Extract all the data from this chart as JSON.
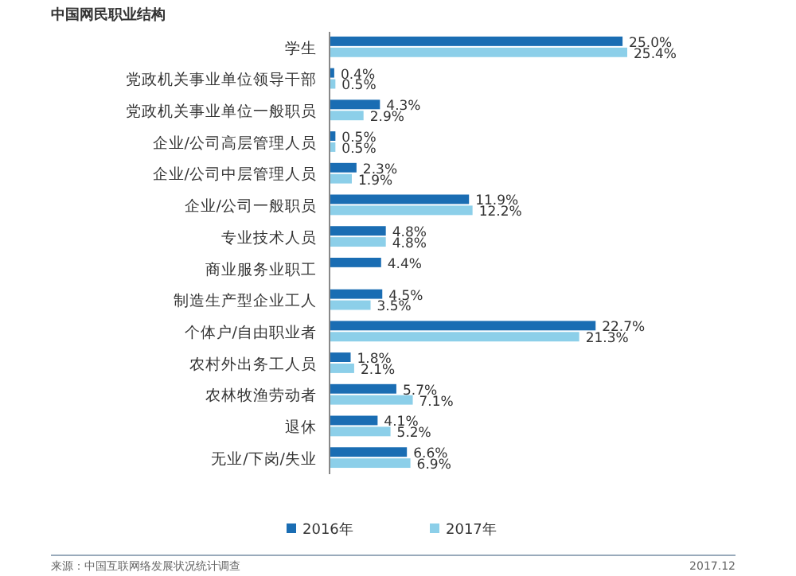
{
  "chart_data": {
    "type": "bar",
    "orientation": "horizontal",
    "title": "中国网民职业结构",
    "categories": [
      "学生",
      "党政机关事业单位领导干部",
      "党政机关事业单位一般职员",
      "企业/公司高层管理人员",
      "企业/公司中层管理人员",
      "企业/公司一般职员",
      "专业技术人员",
      "商业服务业职工",
      "制造生产型企业工人",
      "个体户/自由职业者",
      "农村外出务工人员",
      "农林牧渔劳动者",
      "退休",
      "无业/下岗/失业"
    ],
    "series": [
      {
        "name": "2016年",
        "color": "#1a6db3",
        "values": [
          25.0,
          0.4,
          4.3,
          0.5,
          2.3,
          11.9,
          4.8,
          4.4,
          4.5,
          22.7,
          1.8,
          5.7,
          4.1,
          6.6
        ],
        "value_labels": [
          "25.0%",
          "0.4%",
          "4.3%",
          "0.5%",
          "2.3%",
          "11.9%",
          "4.8%",
          "4.4%",
          "4.5%",
          "22.7%",
          "1.8%",
          "5.7%",
          "4.1%",
          "6.6%"
        ]
      },
      {
        "name": "2017年",
        "color": "#8ccfe9",
        "values": [
          25.4,
          0.5,
          2.9,
          0.5,
          1.9,
          12.2,
          4.8,
          null,
          3.5,
          21.3,
          2.1,
          7.1,
          5.2,
          6.9
        ],
        "value_labels": [
          "25.4%",
          "0.5%",
          "2.9%",
          "0.5%",
          "1.9%",
          "12.2%",
          "4.8%",
          null,
          "3.5%",
          "21.3%",
          "2.1%",
          "7.1%",
          "5.2%",
          "6.9%"
        ]
      }
    ],
    "legend": "bottom",
    "annotations": [
      "来源：中国互联网络发展状况统计调查",
      "2017.12"
    ]
  }
}
